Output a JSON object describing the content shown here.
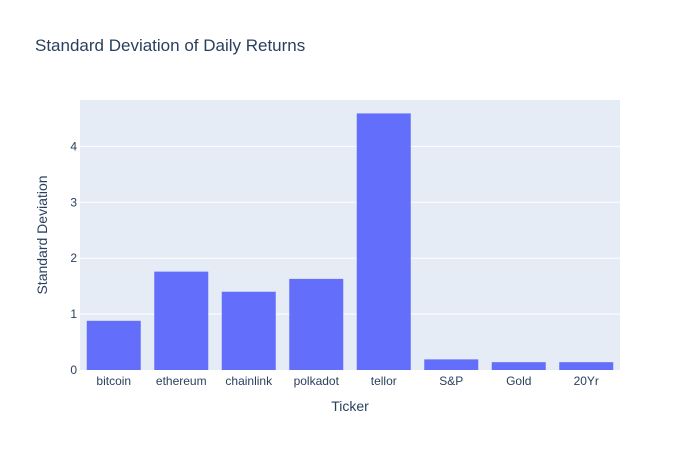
{
  "chart_data": {
    "type": "bar",
    "title": "Standard Deviation of Daily Returns",
    "xlabel": "Ticker",
    "ylabel": "Standard Deviation",
    "categories": [
      "bitcoin",
      "ethereum",
      "chainlink",
      "polkadot",
      "tellor",
      "S&P",
      "Gold",
      "20Yr"
    ],
    "values": [
      0.88,
      1.76,
      1.4,
      1.63,
      4.59,
      0.19,
      0.14,
      0.14
    ],
    "ylim": [
      0,
      4.83
    ],
    "yticks": [
      0,
      1,
      2,
      3,
      4
    ],
    "grid": true,
    "legend": "none",
    "colors": {
      "bar": "#636efa",
      "plot_background": "#e5ecf6",
      "gridline": "#ffffff",
      "text": "#2a3f5f"
    }
  }
}
